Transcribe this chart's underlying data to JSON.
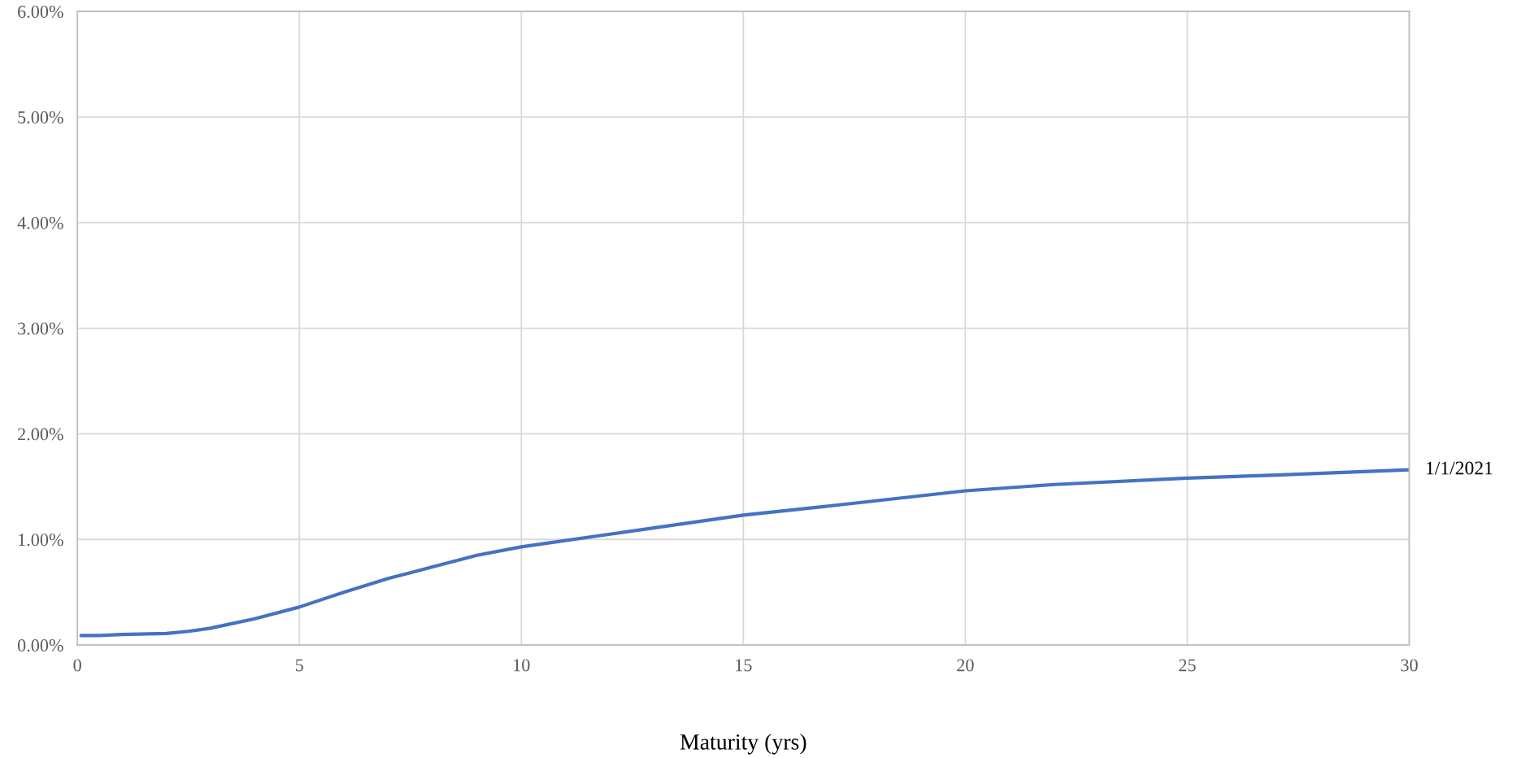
{
  "chart_data": {
    "type": "line",
    "xlabel": "Maturity (yrs)",
    "xlim": [
      0,
      30
    ],
    "xticks": [
      0,
      5,
      10,
      15,
      20,
      25,
      30
    ],
    "ylim": [
      0,
      6
    ],
    "yticks": [
      {
        "value": 0,
        "label": "0.00%"
      },
      {
        "value": 1,
        "label": "1.00%"
      },
      {
        "value": 2,
        "label": "2.00%"
      },
      {
        "value": 3,
        "label": "3.00%"
      },
      {
        "value": 4,
        "label": "4.00%"
      },
      {
        "value": 5,
        "label": "5.00%"
      },
      {
        "value": 6,
        "label": "6.00%"
      }
    ],
    "grid": true,
    "legend": false,
    "marker": "none",
    "line_style": "solid",
    "x": [
      0.083,
      0.5,
      1,
      2,
      2.5,
      3,
      4,
      5,
      6,
      7,
      8,
      9,
      10,
      12,
      15,
      17,
      20,
      22,
      25,
      27,
      30
    ],
    "series": [
      {
        "name": "1/1/2021",
        "color": "#4472c4",
        "values": [
          0.09,
          0.09,
          0.1,
          0.11,
          0.13,
          0.16,
          0.25,
          0.36,
          0.5,
          0.63,
          0.74,
          0.85,
          0.93,
          1.05,
          1.23,
          1.32,
          1.46,
          1.52,
          1.58,
          1.61,
          1.66
        ]
      }
    ]
  }
}
